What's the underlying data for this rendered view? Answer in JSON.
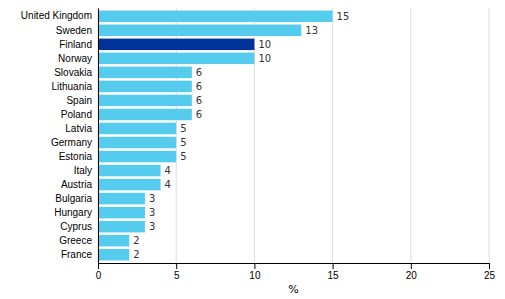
{
  "chart_data": {
    "type": "bar",
    "orientation": "horizontal",
    "categories": [
      "United Kingdom",
      "Sweden",
      "Finland",
      "Norway",
      "Slovakia",
      "Lithuania",
      "Spain",
      "Poland",
      "Latvia",
      "Germany",
      "Estonia",
      "Italy",
      "Austria",
      "Bulgaria",
      "Hungary",
      "Cyprus",
      "Greece",
      "France"
    ],
    "values": [
      15,
      13,
      10,
      10,
      6,
      6,
      6,
      6,
      5,
      5,
      5,
      4,
      4,
      3,
      3,
      3,
      2,
      2
    ],
    "colors": [
      "#55CCEE",
      "#55CCEE",
      "#003399",
      "#55CCEE",
      "#55CCEE",
      "#55CCEE",
      "#55CCEE",
      "#55CCEE",
      "#55CCEE",
      "#55CCEE",
      "#55CCEE",
      "#55CCEE",
      "#55CCEE",
      "#55CCEE",
      "#55CCEE",
      "#55CCEE",
      "#55CCEE",
      "#55CCEE"
    ],
    "xlabel": "%",
    "xlim": [
      0,
      25
    ],
    "xticks": [
      0,
      5,
      10,
      15,
      20,
      25
    ],
    "grid": true,
    "data_labels": true
  }
}
